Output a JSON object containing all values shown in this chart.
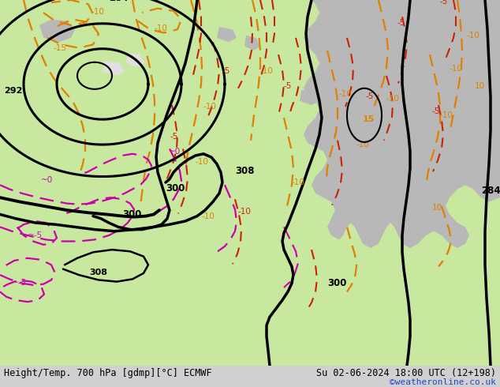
{
  "title_left": "Height/Temp. 700 hPa [gdmp][°C] ECMWF",
  "title_right": "Su 02-06-2024 18:00 UTC (12+198)",
  "credit": "©weatheronline.co.uk",
  "bg_color": "#d0d0d0",
  "land_green": "#c8e8a0",
  "land_gray": "#c8c8c8",
  "sea_gray": "#b8b8b8",
  "contour_black": "#000000",
  "contour_orange": "#e08000",
  "contour_red": "#cc2200",
  "contour_magenta": "#cc00aa",
  "credit_color": "#2244cc",
  "title_fontsize": 8.5,
  "credit_fontsize": 8.0
}
